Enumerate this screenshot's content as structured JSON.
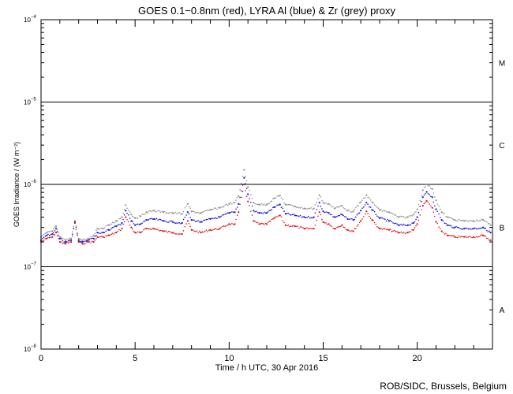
{
  "chart_data": {
    "type": "scatter",
    "title": "GOES 0.1−0.8nm (red), LYRA Al (blue) & Zr (grey) proxy",
    "xlabel": "Time / h UTC, 30 Apr 2016",
    "ylabel": "GOES Irradiance / (W m⁻²)",
    "xlim": [
      0,
      24
    ],
    "ylim": [
      1e-08,
      0.0001
    ],
    "yscale": "log",
    "x_ticks": [
      "0",
      "5",
      "10",
      "15",
      "20"
    ],
    "y_ticks": [
      {
        "base": "10",
        "exp": "−8"
      },
      {
        "base": "10",
        "exp": "−7"
      },
      {
        "base": "10",
        "exp": "−6"
      },
      {
        "base": "10",
        "exp": "−5"
      },
      {
        "base": "10",
        "exp": "−4"
      }
    ],
    "flare_classes": [
      {
        "label": "A",
        "value": 3e-08
      },
      {
        "label": "B",
        "value": 3e-07
      },
      {
        "label": "C",
        "value": 3e-06
      },
      {
        "label": "M",
        "value": 3e-05
      }
    ],
    "reference_lines": [
      1e-07,
      1e-06,
      1e-05
    ],
    "series": [
      {
        "name": "GOES 0.1−0.8nm",
        "color": "#e01010",
        "x": [
          0,
          0.3,
          0.6,
          0.8,
          1.0,
          1.3,
          1.6,
          1.8,
          2.0,
          2.2,
          2.5,
          2.8,
          3.0,
          3.3,
          3.6,
          4.0,
          4.3,
          4.5,
          4.8,
          5.0,
          5.3,
          5.6,
          6.0,
          6.5,
          7.0,
          7.5,
          7.8,
          8.0,
          8.5,
          9.0,
          9.5,
          10.0,
          10.3,
          10.5,
          10.8,
          11.0,
          11.3,
          11.6,
          12.0,
          12.4,
          12.7,
          13.0,
          13.5,
          14.0,
          14.5,
          14.8,
          15.0,
          15.3,
          15.6,
          16.0,
          16.3,
          16.6,
          17.0,
          17.3,
          17.6,
          18.0,
          18.5,
          19.0,
          19.5,
          19.8,
          20.0,
          20.3,
          20.5,
          20.8,
          21.0,
          21.3,
          21.6,
          22.0,
          22.5,
          23.0,
          23.5,
          23.9
        ],
        "y": [
          2e-07,
          2.2e-07,
          2.3e-07,
          2.6e-07,
          2e-07,
          1.9e-07,
          2e-07,
          3.4e-07,
          2e-07,
          1.9e-07,
          2e-07,
          2e-07,
          2.3e-07,
          2.3e-07,
          2.4e-07,
          2.6e-07,
          2.9e-07,
          4e-07,
          3e-07,
          2.6e-07,
          2.6e-07,
          2.9e-07,
          2.9e-07,
          2.7e-07,
          2.6e-07,
          2.5e-07,
          3.6e-07,
          2.8e-07,
          2.6e-07,
          2.8e-07,
          2.9e-07,
          3.3e-07,
          3.3e-07,
          4.6e-07,
          1e-06,
          6.2e-07,
          3.6e-07,
          3.3e-07,
          3.3e-07,
          3.9e-07,
          4.2e-07,
          3.2e-07,
          3.1e-07,
          2.9e-07,
          2.9e-07,
          4.6e-07,
          3.5e-07,
          3.3e-07,
          2.9e-07,
          3.2e-07,
          2.8e-07,
          2.7e-07,
          3.6e-07,
          4.7e-07,
          3.7e-07,
          2.9e-07,
          2.8e-07,
          2.6e-07,
          2.6e-07,
          2.8e-07,
          3.3e-07,
          5.5e-07,
          6.3e-07,
          5.2e-07,
          3.5e-07,
          2.7e-07,
          2.4e-07,
          2.3e-07,
          2.3e-07,
          2.3e-07,
          2.4e-07,
          2.1e-07
        ]
      },
      {
        "name": "LYRA Al",
        "color": "#1010e0",
        "x": [
          0,
          0.3,
          0.6,
          0.8,
          1.0,
          1.3,
          1.6,
          1.8,
          2.0,
          2.2,
          2.5,
          2.8,
          3.0,
          3.3,
          3.6,
          4.0,
          4.3,
          4.5,
          4.8,
          5.0,
          5.3,
          5.6,
          6.0,
          6.5,
          7.0,
          7.5,
          7.8,
          8.0,
          8.5,
          9.0,
          9.5,
          10.0,
          10.3,
          10.5,
          10.8,
          11.0,
          11.3,
          11.6,
          12.0,
          12.4,
          12.7,
          13.0,
          13.5,
          14.0,
          14.5,
          14.8,
          15.0,
          15.3,
          15.6,
          16.0,
          16.3,
          16.6,
          17.0,
          17.3,
          17.6,
          18.0,
          18.5,
          19.0,
          19.5,
          19.8,
          20.0,
          20.3,
          20.5,
          20.8,
          21.0,
          21.3,
          21.6,
          22.0,
          22.5,
          23.0,
          23.5,
          23.9
        ],
        "y": [
          2.1e-07,
          2.4e-07,
          2.5e-07,
          2.9e-07,
          2.2e-07,
          2e-07,
          2.1e-07,
          3.5e-07,
          2.1e-07,
          2e-07,
          2.1e-07,
          2.2e-07,
          2.6e-07,
          2.6e-07,
          2.8e-07,
          3.1e-07,
          3.4e-07,
          4.8e-07,
          3.6e-07,
          3.2e-07,
          3.3e-07,
          3.7e-07,
          3.8e-07,
          3.6e-07,
          3.5e-07,
          3.4e-07,
          4.6e-07,
          3.7e-07,
          3.5e-07,
          3.8e-07,
          4e-07,
          4.5e-07,
          4.6e-07,
          5.8e-07,
          1.2e-06,
          7.6e-07,
          4.8e-07,
          4.5e-07,
          4.5e-07,
          5.3e-07,
          5.7e-07,
          4.4e-07,
          4.2e-07,
          4e-07,
          4e-07,
          6e-07,
          4.7e-07,
          4.5e-07,
          4e-07,
          4.3e-07,
          3.8e-07,
          3.7e-07,
          4.8e-07,
          6e-07,
          4.9e-07,
          3.9e-07,
          3.6e-07,
          3.2e-07,
          3.2e-07,
          3.4e-07,
          4e-07,
          7e-07,
          8.1e-07,
          7e-07,
          5e-07,
          3.7e-07,
          3.2e-07,
          3e-07,
          2.9e-07,
          2.9e-07,
          3e-07,
          2.6e-07
        ]
      },
      {
        "name": "Zr",
        "color": "#909090",
        "x": [
          0,
          0.3,
          0.6,
          0.8,
          1.0,
          1.3,
          1.6,
          1.8,
          2.0,
          2.2,
          2.5,
          2.8,
          3.0,
          3.3,
          3.6,
          4.0,
          4.3,
          4.5,
          4.8,
          5.0,
          5.3,
          5.6,
          6.0,
          6.5,
          7.0,
          7.5,
          7.8,
          8.0,
          8.5,
          9.0,
          9.5,
          10.0,
          10.3,
          10.5,
          10.8,
          11.0,
          11.3,
          11.6,
          12.0,
          12.4,
          12.7,
          13.0,
          13.5,
          14.0,
          14.5,
          14.8,
          15.0,
          15.3,
          15.6,
          16.0,
          16.3,
          16.6,
          17.0,
          17.3,
          17.6,
          18.0,
          18.5,
          19.0,
          19.5,
          19.8,
          20.0,
          20.3,
          20.5,
          20.8,
          21.0,
          21.3,
          21.6,
          22.0,
          22.5,
          23.0,
          23.5,
          23.9
        ],
        "y": [
          2.3e-07,
          2.6e-07,
          2.7e-07,
          3.1e-07,
          2.3e-07,
          2.1e-07,
          2.2e-07,
          3.6e-07,
          2.2e-07,
          2.1e-07,
          2.2e-07,
          2.4e-07,
          2.9e-07,
          2.9e-07,
          3.2e-07,
          3.6e-07,
          4e-07,
          5.6e-07,
          4.3e-07,
          3.9e-07,
          4.1e-07,
          4.6e-07,
          4.8e-07,
          4.6e-07,
          4.5e-07,
          4.4e-07,
          5.8e-07,
          4.7e-07,
          4.5e-07,
          4.9e-07,
          5.2e-07,
          5.8e-07,
          6e-07,
          7.2e-07,
          1.5e-06,
          9.3e-07,
          6e-07,
          5.7e-07,
          5.7e-07,
          6.8e-07,
          7.3e-07,
          5.7e-07,
          5.4e-07,
          5.1e-07,
          5.1e-07,
          7.4e-07,
          6e-07,
          5.8e-07,
          5.1e-07,
          5.5e-07,
          4.8e-07,
          4.7e-07,
          6.1e-07,
          7.4e-07,
          6.1e-07,
          4.9e-07,
          4.6e-07,
          4e-07,
          4e-07,
          4.3e-07,
          5e-07,
          8.5e-07,
          1e-06,
          8.8e-07,
          6.4e-07,
          4.6e-07,
          4e-07,
          3.7e-07,
          3.6e-07,
          3.6e-07,
          3.7e-07,
          3.2e-07
        ]
      }
    ],
    "grid": false,
    "legend": "none"
  },
  "credit": "ROB/SIDC, Brussels, Belgium"
}
